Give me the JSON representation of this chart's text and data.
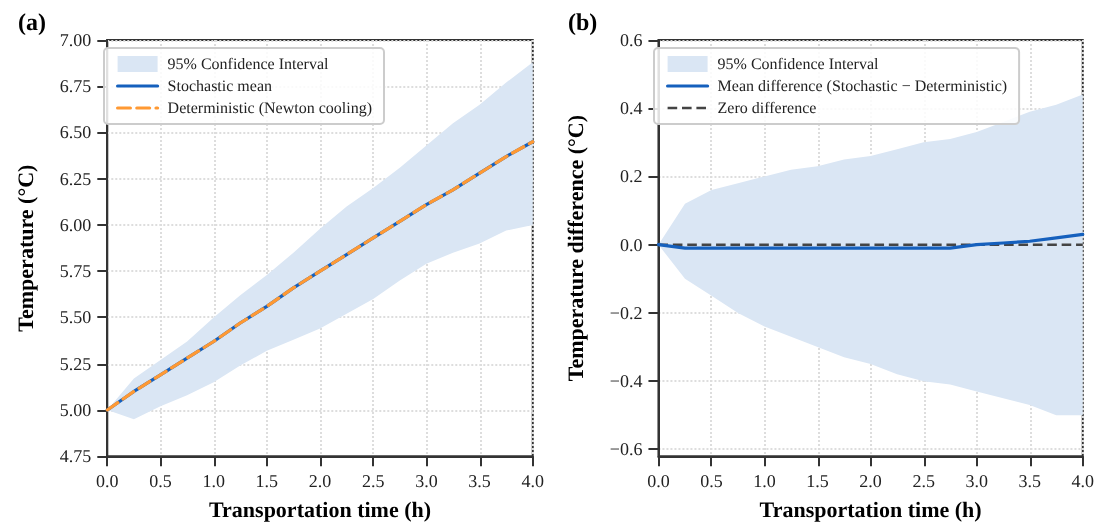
{
  "chart_data": [
    {
      "type": "line",
      "title": "(a)",
      "xlabel": "Transportation time (h)",
      "ylabel": "Temperature (°C)",
      "x": [
        0,
        0.25,
        0.5,
        0.75,
        1,
        1.25,
        1.5,
        1.75,
        2,
        2.25,
        2.5,
        2.75,
        3,
        3.25,
        3.5,
        3.75,
        4
      ],
      "series": [
        {
          "name": "95% Confidence Interval",
          "type": "area",
          "color": "#dae6f4",
          "values": [
            null,
            null,
            null,
            null,
            null,
            null,
            null,
            null,
            null,
            null,
            null,
            null,
            null,
            null,
            null,
            null,
            null
          ],
          "lower": [
            5.0,
            4.95,
            5.02,
            5.08,
            5.15,
            5.24,
            5.32,
            5.38,
            5.44,
            5.52,
            5.6,
            5.7,
            5.79,
            5.85,
            5.9,
            5.97,
            6.0
          ],
          "upper": [
            5.0,
            5.17,
            5.27,
            5.37,
            5.5,
            5.62,
            5.73,
            5.85,
            5.98,
            6.1,
            6.2,
            6.31,
            6.43,
            6.55,
            6.65,
            6.77,
            6.88
          ]
        },
        {
          "name": "Stochastic mean",
          "color": "#1560bd",
          "line_style": "solid",
          "values": [
            5.0,
            5.1,
            5.19,
            5.28,
            5.37,
            5.47,
            5.56,
            5.66,
            5.75,
            5.84,
            5.93,
            6.02,
            6.11,
            6.19,
            6.28,
            6.37,
            6.45
          ]
        },
        {
          "name": "Deterministic (Newton cooling)",
          "color": "#ff9933",
          "line_style": "dashed",
          "values": [
            5.0,
            5.1,
            5.19,
            5.28,
            5.37,
            5.47,
            5.56,
            5.66,
            5.75,
            5.84,
            5.93,
            6.02,
            6.11,
            6.19,
            6.28,
            6.37,
            6.45
          ]
        }
      ],
      "xlim": [
        0,
        4
      ],
      "xticks": [
        {
          "value": 0,
          "label": "0.0"
        },
        {
          "value": 0.5,
          "label": "0.5"
        },
        {
          "value": 1,
          "label": "1.0"
        },
        {
          "value": 1.5,
          "label": "1.5"
        },
        {
          "value": 2,
          "label": "2.0"
        },
        {
          "value": 2.5,
          "label": "2.5"
        },
        {
          "value": 3,
          "label": "3.0"
        },
        {
          "value": 3.5,
          "label": "3.5"
        },
        {
          "value": 4,
          "label": "4.0"
        }
      ],
      "ylim": [
        4.75,
        7.0
      ],
      "yticks": [
        {
          "value": 4.75,
          "label": "4.75"
        },
        {
          "value": 5,
          "label": "5.00"
        },
        {
          "value": 5.25,
          "label": "5.25"
        },
        {
          "value": 5.5,
          "label": "5.50"
        },
        {
          "value": 5.75,
          "label": "5.75"
        },
        {
          "value": 6,
          "label": "6.00"
        },
        {
          "value": 6.25,
          "label": "6.25"
        },
        {
          "value": 6.5,
          "label": "6.50"
        },
        {
          "value": 6.75,
          "label": "6.75"
        },
        {
          "value": 7,
          "label": "7.00"
        }
      ],
      "grid": true,
      "legend": "top left",
      "marker": "none"
    },
    {
      "type": "line",
      "title": "(b)",
      "xlabel": "Transportation time (h)",
      "ylabel": "Temperature difference (°C)",
      "x": [
        0,
        0.25,
        0.5,
        0.75,
        1,
        1.25,
        1.5,
        1.75,
        2,
        2.25,
        2.5,
        2.75,
        3,
        3.25,
        3.5,
        3.75,
        4
      ],
      "series": [
        {
          "name": "95% Confidence Interval",
          "type": "area",
          "color": "#dae6f4",
          "values": [
            null,
            null,
            null,
            null,
            null,
            null,
            null,
            null,
            null,
            null,
            null,
            null,
            null,
            null,
            null,
            null,
            null
          ],
          "lower": [
            0,
            -0.1,
            -0.15,
            -0.2,
            -0.24,
            -0.27,
            -0.3,
            -0.33,
            -0.35,
            -0.38,
            -0.4,
            -0.41,
            -0.43,
            -0.45,
            -0.47,
            -0.5,
            -0.5
          ],
          "upper": [
            0,
            0.12,
            0.16,
            0.18,
            0.2,
            0.22,
            0.23,
            0.25,
            0.26,
            0.28,
            0.3,
            0.31,
            0.33,
            0.36,
            0.39,
            0.41,
            0.44
          ]
        },
        {
          "name": "Mean difference (Stochastic − Deterministic)",
          "color": "#1560bd",
          "line_style": "solid",
          "values": [
            0,
            -0.01,
            -0.01,
            -0.01,
            -0.01,
            -0.01,
            -0.01,
            -0.01,
            -0.01,
            -0.01,
            -0.01,
            -0.01,
            0,
            0.005,
            0.01,
            0.02,
            0.03
          ]
        }
      ],
      "ref_lines": [
        {
          "axis": "y",
          "value": 0,
          "label": "Zero difference",
          "color": "#444444",
          "line_style": "dashed"
        }
      ],
      "xlim": [
        0,
        4
      ],
      "xticks": [
        {
          "value": 0,
          "label": "0.0"
        },
        {
          "value": 0.5,
          "label": "0.5"
        },
        {
          "value": 1,
          "label": "1.0"
        },
        {
          "value": 1.5,
          "label": "1.5"
        },
        {
          "value": 2,
          "label": "2.0"
        },
        {
          "value": 2.5,
          "label": "2.5"
        },
        {
          "value": 3,
          "label": "3.0"
        },
        {
          "value": 3.5,
          "label": "3.5"
        },
        {
          "value": 4,
          "label": "4.0"
        }
      ],
      "ylim": [
        -0.62,
        0.6
      ],
      "yticks": [
        {
          "value": -0.6,
          "label": "−0.6"
        },
        {
          "value": -0.4,
          "label": "−0.4"
        },
        {
          "value": -0.2,
          "label": "−0.2"
        },
        {
          "value": 0,
          "label": "0.0"
        },
        {
          "value": 0.2,
          "label": "0.2"
        },
        {
          "value": 0.4,
          "label": "0.4"
        },
        {
          "value": 0.6,
          "label": "0.6"
        }
      ],
      "grid": true,
      "legend": "top left",
      "marker": "none"
    }
  ]
}
